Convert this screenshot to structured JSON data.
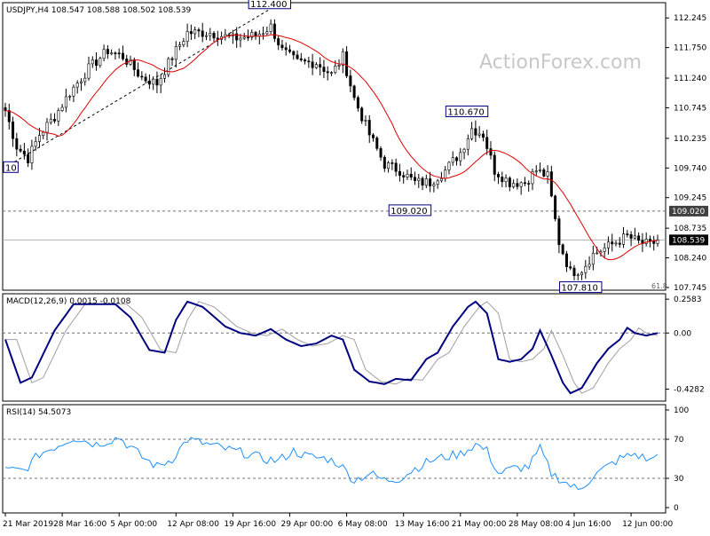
{
  "chart_data": {
    "type": "candlestick",
    "symbol_header": "USDJPY,H4  108.547 108.588 108.502 108.539",
    "watermark": "ActionForex.com",
    "colors": {
      "background": "#ffffff",
      "candle": "#000000",
      "ma": "#e00000",
      "macd_line": "#000080",
      "macd_signal": "#a0a0a0",
      "rsi": "#1e90ff",
      "grid_dash": "#707070",
      "axis": "#000000"
    },
    "price_panel": {
      "ylim": [
        107.7,
        112.5
      ],
      "y_ticks": [
        "112.245",
        "111.750",
        "111.240",
        "110.745",
        "110.235",
        "109.740",
        "109.245",
        "108.735",
        "108.240",
        "107.745"
      ],
      "dashed_levels": [
        109.02
      ],
      "last_price": 108.539,
      "badges": [
        {
          "label": "109.020",
          "value": 109.02,
          "style": "dark"
        },
        {
          "label": "108.539",
          "value": 108.539,
          "style": "light"
        }
      ],
      "annotations": [
        {
          "label": "112.400",
          "bar": 70,
          "value": 112.4
        },
        {
          "label": "110.670",
          "bar": 122,
          "value": 110.67
        },
        {
          "label": "109.020",
          "bar": 107,
          "value": 109.02
        },
        {
          "label": "107.810",
          "bar": 152,
          "value": 107.81
        },
        {
          "label": "10",
          "bar": 0,
          "value": 109.74
        }
      ],
      "corner_label": "61.8",
      "trendline": [
        [
          0,
          109.75
        ],
        [
          70,
          112.4
        ]
      ],
      "ohlc_anchors": [
        [
          0,
          110.7
        ],
        [
          3,
          110.1
        ],
        [
          6,
          109.9
        ],
        [
          9,
          110.3
        ],
        [
          13,
          110.6
        ],
        [
          17,
          111.0
        ],
        [
          22,
          111.4
        ],
        [
          27,
          111.7
        ],
        [
          31,
          111.6
        ],
        [
          36,
          111.25
        ],
        [
          40,
          111.15
        ],
        [
          44,
          111.6
        ],
        [
          48,
          112.0
        ],
        [
          54,
          112.0
        ],
        [
          60,
          111.9
        ],
        [
          66,
          111.95
        ],
        [
          70,
          112.1
        ],
        [
          73,
          111.7
        ],
        [
          77,
          111.5
        ],
        [
          82,
          111.5
        ],
        [
          86,
          111.3
        ],
        [
          89,
          111.6
        ],
        [
          92,
          110.9
        ],
        [
          96,
          110.3
        ],
        [
          100,
          109.8
        ],
        [
          104,
          109.7
        ],
        [
          108,
          109.5
        ],
        [
          112,
          109.5
        ],
        [
          116,
          109.7
        ],
        [
          120,
          110.0
        ],
        [
          123,
          110.4
        ],
        [
          126,
          110.3
        ],
        [
          129,
          109.7
        ],
        [
          133,
          109.5
        ],
        [
          137,
          109.5
        ],
        [
          140,
          109.7
        ],
        [
          143,
          109.6
        ],
        [
          146,
          108.5
        ],
        [
          149,
          108.0
        ],
        [
          152,
          108.05
        ],
        [
          155,
          108.3
        ],
        [
          158,
          108.4
        ],
        [
          161,
          108.5
        ],
        [
          164,
          108.6
        ],
        [
          167,
          108.5
        ],
        [
          170,
          108.45
        ],
        [
          172,
          108.539
        ]
      ]
    },
    "macd_panel": {
      "label": "MACD(12,26,9) 0.0015 -0.0108",
      "ylim": [
        -0.52,
        0.3
      ],
      "y_ticks": [
        "0.2583",
        "0.00",
        "-0.4282"
      ],
      "zero_label": "0.00",
      "macd_anchors": [
        [
          0,
          -0.05
        ],
        [
          4,
          -0.38
        ],
        [
          7,
          -0.34
        ],
        [
          13,
          0.02
        ],
        [
          18,
          0.22
        ],
        [
          23,
          0.22
        ],
        [
          29,
          0.22
        ],
        [
          33,
          0.12
        ],
        [
          38,
          -0.13
        ],
        [
          42,
          -0.15
        ],
        [
          45,
          0.1
        ],
        [
          48,
          0.24
        ],
        [
          52,
          0.2
        ],
        [
          58,
          0.05
        ],
        [
          62,
          0.0
        ],
        [
          66,
          -0.02
        ],
        [
          70,
          0.03
        ],
        [
          74,
          -0.05
        ],
        [
          78,
          -0.1
        ],
        [
          82,
          -0.08
        ],
        [
          86,
          -0.02
        ],
        [
          89,
          -0.05
        ],
        [
          92,
          -0.28
        ],
        [
          96,
          -0.37
        ],
        [
          100,
          -0.39
        ],
        [
          103,
          -0.35
        ],
        [
          107,
          -0.36
        ],
        [
          111,
          -0.2
        ],
        [
          114,
          -0.15
        ],
        [
          118,
          0.05
        ],
        [
          122,
          0.2
        ],
        [
          124,
          0.24
        ],
        [
          127,
          0.15
        ],
        [
          130,
          -0.2
        ],
        [
          133,
          -0.22
        ],
        [
          136,
          -0.2
        ],
        [
          139,
          -0.12
        ],
        [
          141,
          0.02
        ],
        [
          144,
          -0.17
        ],
        [
          147,
          -0.38
        ],
        [
          149,
          -0.46
        ],
        [
          152,
          -0.42
        ],
        [
          156,
          -0.23
        ],
        [
          159,
          -0.12
        ],
        [
          162,
          -0.05
        ],
        [
          164,
          0.04
        ],
        [
          166,
          0.0
        ],
        [
          169,
          -0.02
        ],
        [
          172,
          0.0
        ]
      ],
      "signal_lag_bars": 3
    },
    "rsi_panel": {
      "label": "RSI(14) 54.5073",
      "ylim": [
        0,
        100
      ],
      "y_ticks": [
        "100",
        "70",
        "30",
        "0"
      ],
      "levels": [
        70,
        30
      ],
      "rsi_anchors": [
        [
          0,
          38
        ],
        [
          5,
          38
        ],
        [
          9,
          55
        ],
        [
          14,
          64
        ],
        [
          18,
          72
        ],
        [
          24,
          65
        ],
        [
          30,
          72
        ],
        [
          36,
          52
        ],
        [
          40,
          42
        ],
        [
          44,
          50
        ],
        [
          48,
          70
        ],
        [
          52,
          66
        ],
        [
          58,
          60
        ],
        [
          64,
          55
        ],
        [
          68,
          50
        ],
        [
          72,
          48
        ],
        [
          76,
          58
        ],
        [
          80,
          52
        ],
        [
          85,
          50
        ],
        [
          88,
          45
        ],
        [
          92,
          28
        ],
        [
          96,
          35
        ],
        [
          100,
          28
        ],
        [
          104,
          30
        ],
        [
          108,
          40
        ],
        [
          112,
          48
        ],
        [
          116,
          52
        ],
        [
          120,
          55
        ],
        [
          124,
          65
        ],
        [
          127,
          58
        ],
        [
          130,
          35
        ],
        [
          134,
          40
        ],
        [
          138,
          42
        ],
        [
          141,
          60
        ],
        [
          144,
          35
        ],
        [
          148,
          25
        ],
        [
          151,
          18
        ],
        [
          155,
          32
        ],
        [
          158,
          40
        ],
        [
          162,
          50
        ],
        [
          166,
          55
        ],
        [
          170,
          48
        ],
        [
          172,
          54.5
        ]
      ]
    },
    "x_axis": {
      "labels": [
        "21 Mar 2019",
        "28 Mar 16:00",
        "5 Apr 00:00",
        "12 Apr 08:00",
        "19 Apr 16:00",
        "29 Apr 00:00",
        "6 May 08:00",
        "13 May 16:00",
        "21 May 00:00",
        "28 May 08:00",
        "4 Jun 16:00",
        "12 Jun 00:00"
      ],
      "label_bars": [
        0,
        15,
        30,
        45,
        60,
        75,
        90,
        105,
        120,
        135,
        150,
        165
      ],
      "bar_count": 173
    }
  }
}
